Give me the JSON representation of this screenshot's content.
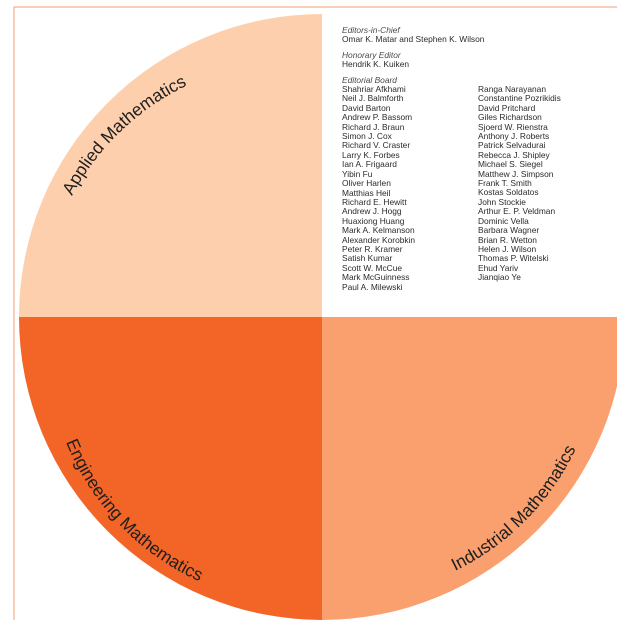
{
  "colors": {
    "applied": "#fdcfac",
    "engineering": "#f26527",
    "industrial": "#fa9f6e",
    "border": "#f0a274",
    "text": "#2b2b2b"
  },
  "quadrants": {
    "applied": "Applied Mathematics",
    "engineering": "Engineering Mathematics",
    "industrial": "Industrial Mathematics"
  },
  "board": {
    "editors_heading": "Editors-in-Chief",
    "editors": "Omar K. Matar and Stephen K. Wilson",
    "honorary_heading": "Honorary Editor",
    "honorary": "Hendrik K. Kuiken",
    "board_heading": "Editorial Board",
    "column1": [
      "Shahriar Afkhami",
      "Neil J. Balmforth",
      "David Barton",
      "Andrew P. Bassom",
      "Richard J. Braun",
      "Simon J. Cox",
      "Richard V. Craster",
      "Larry K. Forbes",
      "Ian A. Frigaard",
      "Yibin Fu",
      "Oliver Harlen",
      "Matthias Heil",
      "Richard E. Hewitt",
      "Andrew J. Hogg",
      "Huaxiong Huang",
      "Mark A. Kelmanson",
      "Alexander Korobkin",
      "Peter R. Kramer",
      "Satish Kumar",
      "Scott W. McCue",
      "Mark McGuinness",
      "Paul A. Milewski"
    ],
    "column2": [
      "Ranga Narayanan",
      "Constantine Pozrikidis",
      "David Pritchard",
      "Giles Richardson",
      "Sjoerd W. Rienstra",
      "Anthony J. Roberts",
      "Patrick Selvadurai",
      "Rebecca J. Shipley",
      "Michael S. Siegel",
      "Matthew J. Simpson",
      "Frank T. Smith",
      "Kostas Soldatos",
      "John Stockie",
      "Arthur E. P. Veldman",
      "Dominic Vella",
      "Barbara Wagner",
      "Brian R. Wetton",
      "Helen J. Wilson",
      "Thomas P. Witelski",
      "Ehud Yariv",
      "Jianqiao Ye"
    ]
  }
}
